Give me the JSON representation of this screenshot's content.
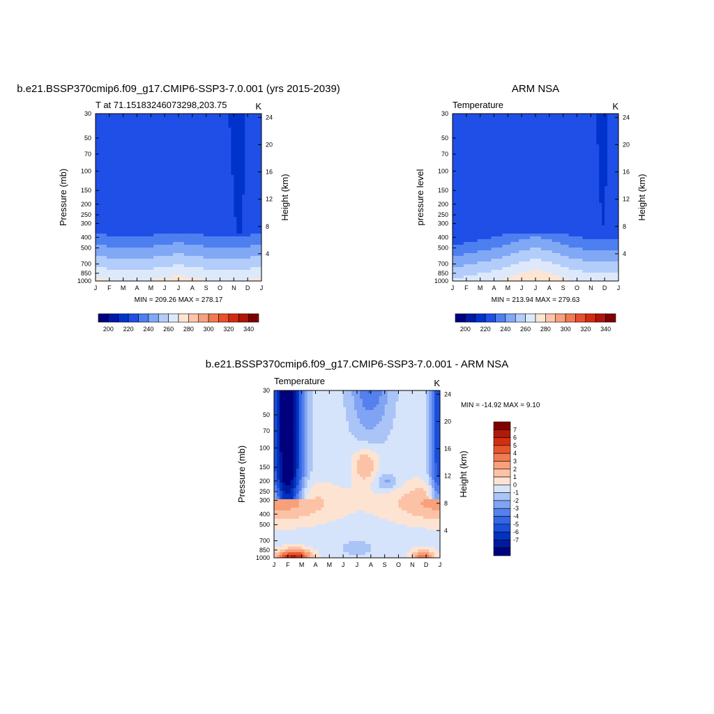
{
  "panels": [
    {
      "title": "b.e21.BSSP370cmip6.f09_g17.CMIP6-SSP3-7.0.001 (yrs 2015-2039)",
      "left_label": "T at 71.15183246073298,203.75",
      "right_label": "K",
      "ylabel": "Pressure (mb)",
      "y2label": "Height (km)",
      "minmax": "MIN = 209.26 MAX = 278.17"
    },
    {
      "title": "ARM NSA",
      "left_label": "Temperature",
      "right_label": "K",
      "ylabel": "pressure level",
      "y2label": "Height (km)",
      "minmax": "MIN = 213.94 MAX = 279.63"
    },
    {
      "title": "b.e21.BSSP370cmip6.f09_g17.CMIP6-SSP3-7.0.001 - ARM NSA",
      "left_label": "Temperature",
      "right_label": "K",
      "ylabel": "Pressure (mb)",
      "y2label": "Height (km)",
      "minmax": "MIN = -14.92 MAX =   9.10"
    }
  ],
  "colors": {
    "temp_levels": [
      "#000080",
      "#001aa8",
      "#0033cc",
      "#1f4fe6",
      "#4d7ff0",
      "#80a8f5",
      "#b3cdfa",
      "#dde9fb",
      "#fde5d2",
      "#fcc4a8",
      "#f7a07d",
      "#f07a52",
      "#e8502e",
      "#d42a12",
      "#b0140a",
      "#800000"
    ],
    "diff_levels": [
      "#00007f",
      "#001a9e",
      "#0033bf",
      "#1a4fd9",
      "#3366e6",
      "#5580ee",
      "#80a3f3",
      "#aac4f7",
      "#d6e4fb",
      "#fde3d2",
      "#fcc2a6",
      "#f7a07b",
      "#f07c52",
      "#e7552d",
      "#d42e12",
      "#b01a0a",
      "#800000"
    ]
  },
  "chart_data": [
    {
      "type": "heatmap",
      "title": "b.e21.BSSP370cmip6.f09_g17.CMIP6-SSP3-7.0.001 (yrs 2015-2039)",
      "x_tick_labels": [
        "J",
        "F",
        "M",
        "A",
        "M",
        "J",
        "J",
        "A",
        "S",
        "O",
        "N",
        "D",
        "J"
      ],
      "y_axis": "Pressure (mb)",
      "y_ticks": [
        "30",
        "50",
        "70",
        "100",
        "150",
        "200",
        "250",
        "300",
        "400",
        "500",
        "700",
        "850",
        "1000"
      ],
      "y2_axis": "Height (km)",
      "y2_ticks": [
        "24",
        "20",
        "16",
        "12",
        "8",
        "4"
      ],
      "colorbar_ticks": [
        "200",
        "220",
        "240",
        "260",
        "280",
        "300",
        "320",
        "340"
      ],
      "colorbar_range": [
        190,
        350
      ],
      "min": 209.26,
      "max": 278.17,
      "units": "K"
    },
    {
      "type": "heatmap",
      "title": "ARM NSA",
      "x_tick_labels": [
        "J",
        "F",
        "M",
        "A",
        "M",
        "J",
        "J",
        "A",
        "S",
        "O",
        "N",
        "D",
        "J"
      ],
      "y_axis": "pressure level",
      "y_ticks": [
        "30",
        "50",
        "70",
        "100",
        "150",
        "200",
        "250",
        "300",
        "400",
        "500",
        "700",
        "850",
        "1000"
      ],
      "y2_axis": "Height (km)",
      "y2_ticks": [
        "24",
        "20",
        "16",
        "12",
        "8",
        "4"
      ],
      "colorbar_ticks": [
        "200",
        "220",
        "240",
        "260",
        "280",
        "300",
        "320",
        "340"
      ],
      "colorbar_range": [
        190,
        350
      ],
      "min": 213.94,
      "max": 279.63,
      "units": "K"
    },
    {
      "type": "heatmap",
      "title": "b.e21.BSSP370cmip6.f09_g17.CMIP6-SSP3-7.0.001 - ARM NSA",
      "x_tick_labels": [
        "J",
        "F",
        "M",
        "A",
        "M",
        "J",
        "J",
        "A",
        "S",
        "O",
        "N",
        "D",
        "J"
      ],
      "y_axis": "Pressure (mb)",
      "y_ticks": [
        "30",
        "50",
        "70",
        "100",
        "150",
        "200",
        "250",
        "300",
        "400",
        "500",
        "700",
        "850",
        "1000"
      ],
      "y2_axis": "Height (km)",
      "y2_ticks": [
        "24",
        "20",
        "16",
        "12",
        "8",
        "4"
      ],
      "colorbar_ticks": [
        "7",
        "6",
        "5",
        "4",
        "3",
        "2",
        "1",
        "0",
        "-1",
        "-2",
        "-3",
        "-4",
        "-5",
        "-6",
        "-7"
      ],
      "min": -14.92,
      "max": 9.1,
      "units": "K"
    }
  ]
}
